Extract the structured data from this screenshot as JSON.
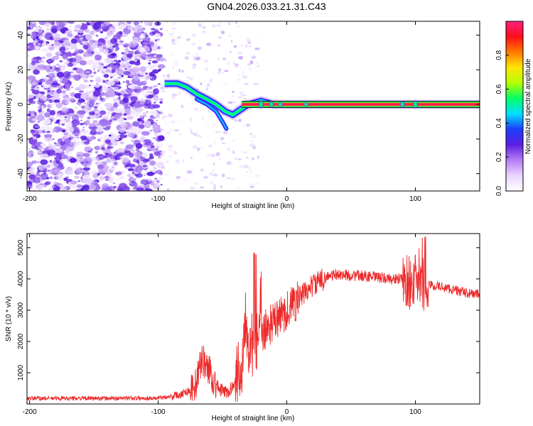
{
  "title": "GN04.2026.033.21.31.C43",
  "chart_data": [
    {
      "type": "heatmap",
      "xlabel": "Height of straight line (km)",
      "ylabel": "Frequency (Hz)",
      "xlim": [
        -202,
        150
      ],
      "ylim": [
        -50,
        48
      ],
      "xticks": [
        -200,
        -100,
        0,
        100
      ],
      "yticks": [
        40,
        20,
        0,
        -20,
        -40
      ],
      "colorbar": {
        "label": "Normalized spectral amplitude",
        "range": [
          0,
          1
        ],
        "ticks": [
          "0.0",
          "0.2",
          "0.4",
          "0.6",
          "0.8"
        ],
        "tick_values": [
          0.0,
          0.2,
          0.4,
          0.6,
          0.8
        ],
        "colors": [
          "#ffffff",
          "#e9d5ff",
          "#b57cf5",
          "#5a1fe0",
          "#1d3dff",
          "#00e0ff",
          "#00ff66",
          "#b4ff00",
          "#ffe600",
          "#ff7a00",
          "#ff0d1a",
          "#ff2080"
        ]
      },
      "ridge": [
        {
          "x": -95,
          "y": 12
        },
        {
          "x": -85,
          "y": 12
        },
        {
          "x": -78,
          "y": 10
        },
        {
          "x": -70,
          "y": 6
        },
        {
          "x": -62,
          "y": 3
        },
        {
          "x": -55,
          "y": 0
        },
        {
          "x": -48,
          "y": -4
        },
        {
          "x": -42,
          "y": -6
        },
        {
          "x": -36,
          "y": -3
        },
        {
          "x": -30,
          "y": 0
        },
        {
          "x": -20,
          "y": 2
        },
        {
          "x": -10,
          "y": 0
        },
        {
          "x": 0,
          "y": 0
        },
        {
          "x": 50,
          "y": 0
        },
        {
          "x": 100,
          "y": 0
        },
        {
          "x": 150,
          "y": 0
        }
      ],
      "carrier_frequency": 0,
      "noise_region": [
        -200,
        -97
      ]
    },
    {
      "type": "line",
      "xlabel": "Height of straight line (km)",
      "ylabel": "SNR (10 * v/v)",
      "xlim": [
        -202,
        150
      ],
      "ylim": [
        0,
        5450
      ],
      "xticks": [
        -200,
        -100,
        0,
        100
      ],
      "yticks": [
        1000,
        2000,
        3000,
        4000,
        5000
      ],
      "color": "#ee2a2a",
      "series": [
        {
          "name": "SNR",
          "x": [
            -200,
            -150,
            -100,
            -85,
            -75,
            -70,
            -66,
            -63,
            -60,
            -57,
            -52,
            -45,
            -40,
            -35,
            -32,
            -29,
            -26,
            -24,
            -20,
            -15,
            -10,
            -5,
            0,
            5,
            10,
            15,
            20,
            25,
            30,
            40,
            50,
            60,
            70,
            80,
            88,
            95,
            100,
            103,
            106,
            110,
            120,
            130,
            140,
            150
          ],
          "y": [
            180,
            180,
            190,
            280,
            450,
            700,
            1500,
            1200,
            1100,
            750,
            450,
            350,
            800,
            1200,
            3000,
            1800,
            1900,
            2200,
            2100,
            2500,
            2600,
            2800,
            3000,
            3200,
            3400,
            3600,
            3800,
            3900,
            4050,
            4150,
            4100,
            4100,
            4050,
            4000,
            4000,
            3900,
            3900,
            4100,
            3800,
            3800,
            3750,
            3650,
            3550,
            3500
          ]
        }
      ]
    }
  ]
}
